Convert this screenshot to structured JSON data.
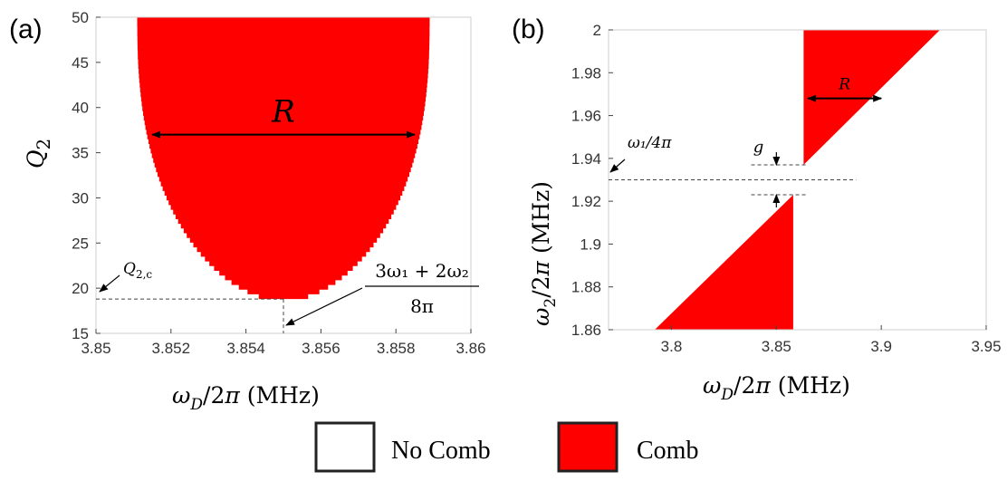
{
  "panels": {
    "a_label": "(a)",
    "b_label": "(b)"
  },
  "legend": {
    "no_comb": "No Comb",
    "comb": "Comb",
    "no_comb_color": "#ffffff",
    "comb_color": "#ff0000"
  },
  "chart_data": [
    {
      "type": "heatmap",
      "panel": "(a)",
      "xlabel": "ω_D/2π (MHz)",
      "ylabel": "Q_2",
      "xlim": [
        3.85,
        3.86
      ],
      "ylim": [
        15,
        50
      ],
      "xticks": [
        "3.85",
        "3.852",
        "3.854",
        "3.856",
        "3.858",
        "3.86"
      ],
      "yticks": [
        "15",
        "20",
        "25",
        "30",
        "35",
        "40",
        "45",
        "50"
      ],
      "region_color": "#ff0000",
      "comb_region": {
        "shape": "parabolic",
        "vertex_x": 3.855,
        "vertex_y": 18.8,
        "top_y": 50,
        "top_xrange": [
          3.8511,
          3.8589
        ],
        "boundary": [
          {
            "y": 18.8,
            "x_left": 3.855,
            "x_right": 3.855
          },
          {
            "y": 20,
            "x_left": 3.853,
            "x_right": 3.857
          },
          {
            "y": 25,
            "x_left": 3.8527,
            "x_right": 3.8573
          },
          {
            "y": 30,
            "x_left": 3.8519,
            "x_right": 3.8581
          },
          {
            "y": 35,
            "x_left": 3.8514,
            "x_right": 3.8586
          },
          {
            "y": 40,
            "x_left": 3.8512,
            "x_right": 3.8588
          },
          {
            "y": 45,
            "x_left": 3.8511,
            "x_right": 3.8589
          },
          {
            "y": 50,
            "x_left": 3.8511,
            "x_right": 3.8589
          }
        ]
      },
      "annotations": {
        "range_label": "R",
        "range_arrow": {
          "x1": 3.8515,
          "x2": 3.8585,
          "y": 37
        },
        "q2c_label": "Q_{2,c}",
        "q2c_value": 18.8,
        "fraction_numerator": "3ω₁ + 2ω₂",
        "fraction_denominator": "8π"
      }
    },
    {
      "type": "heatmap",
      "panel": "(b)",
      "xlabel": "ω_D/2π (MHz)",
      "ylabel": "ω_2/2π (MHz)",
      "xlim": [
        3.77,
        3.95
      ],
      "ylim": [
        1.86,
        2.0
      ],
      "xticks": [
        "3.8",
        "3.85",
        "3.9",
        "3.95"
      ],
      "yticks": [
        "1.86",
        "1.88",
        "1.9",
        "1.92",
        "1.94",
        "1.96",
        "1.98",
        "2"
      ],
      "region_color": "#ff0000",
      "comb_regions": [
        {
          "name": "upper",
          "vertices": [
            [
              3.863,
              2.0
            ],
            [
              3.928,
              2.0
            ],
            [
              3.863,
              1.937
            ]
          ]
        },
        {
          "name": "lower",
          "vertices": [
            [
              3.792,
              1.86
            ],
            [
              3.858,
              1.86
            ],
            [
              3.858,
              1.923
            ]
          ]
        }
      ],
      "annotations": {
        "omega_label": "ω₁/4π",
        "omega_value": 1.93,
        "gap_label": "g",
        "gap_upper": 1.937,
        "gap_lower": 1.923,
        "range_label": "R",
        "range_arrow": {
          "x1": 3.865,
          "x2": 3.9,
          "y": 1.968
        }
      }
    }
  ]
}
